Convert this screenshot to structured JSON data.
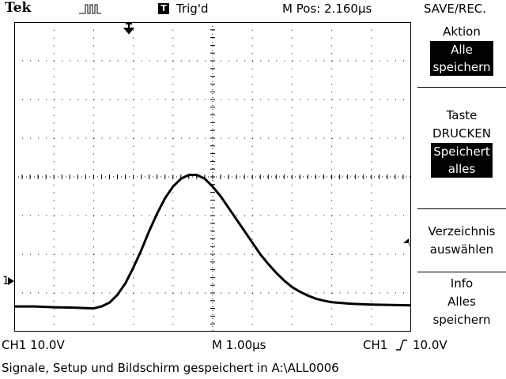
{
  "header": {
    "brand": "Tek",
    "trigger_status": "Trig'd",
    "trigger_indicator": "T",
    "menu_title": "SAVE/REC.",
    "horizontal_position": "M Pos: 2.160µs"
  },
  "side_menu": {
    "item1": {
      "title": "Aktion",
      "value_line1": "Alle",
      "value_line2": "speichern"
    },
    "item2": {
      "title_line1": "Taste",
      "title_line2": "DRUCKEN",
      "value_line1": "Speichert",
      "value_line2": "alles"
    },
    "item3": {
      "line1": "Verzeichnis",
      "line2": "auswählen"
    },
    "item4": {
      "line1": "Info",
      "line2": "Alles",
      "line3": "speichern"
    }
  },
  "readout": {
    "ch1_scale": "CH1  10.0V",
    "timebase": "M 1.00µs",
    "trigger_source": "CH1",
    "trigger_level": "10.0V",
    "ch1_marker": "1"
  },
  "status": "Signale, Setup und Bildschirm gespeichert in A:\\ALL0006",
  "waveform": {
    "channel": "CH1",
    "description_points_note": "",
    "x_divisions": 10,
    "y_divisions": 8,
    "samples": [
      [
        0.0,
        -0.05
      ],
      [
        0.5,
        -0.05
      ],
      [
        1.0,
        -0.07
      ],
      [
        1.5,
        -0.08
      ],
      [
        2.0,
        -0.1
      ],
      [
        2.2,
        -0.05
      ],
      [
        2.4,
        0.05
      ],
      [
        2.6,
        0.25
      ],
      [
        2.8,
        0.55
      ],
      [
        3.0,
        0.95
      ],
      [
        3.2,
        1.4
      ],
      [
        3.4,
        1.9
      ],
      [
        3.6,
        2.35
      ],
      [
        3.8,
        2.75
      ],
      [
        4.0,
        3.05
      ],
      [
        4.2,
        3.25
      ],
      [
        4.4,
        3.35
      ],
      [
        4.6,
        3.35
      ],
      [
        4.8,
        3.25
      ],
      [
        5.0,
        3.05
      ],
      [
        5.2,
        2.8
      ],
      [
        5.4,
        2.5
      ],
      [
        5.6,
        2.2
      ],
      [
        5.8,
        1.9
      ],
      [
        6.0,
        1.6
      ],
      [
        6.2,
        1.3
      ],
      [
        6.4,
        1.05
      ],
      [
        6.6,
        0.82
      ],
      [
        6.8,
        0.62
      ],
      [
        7.0,
        0.45
      ],
      [
        7.2,
        0.33
      ],
      [
        7.4,
        0.23
      ],
      [
        7.6,
        0.15
      ],
      [
        7.8,
        0.1
      ],
      [
        8.0,
        0.06
      ],
      [
        8.5,
        0.02
      ],
      [
        9.0,
        0.0
      ],
      [
        9.5,
        -0.01
      ],
      [
        10.0,
        -0.02
      ]
    ]
  }
}
